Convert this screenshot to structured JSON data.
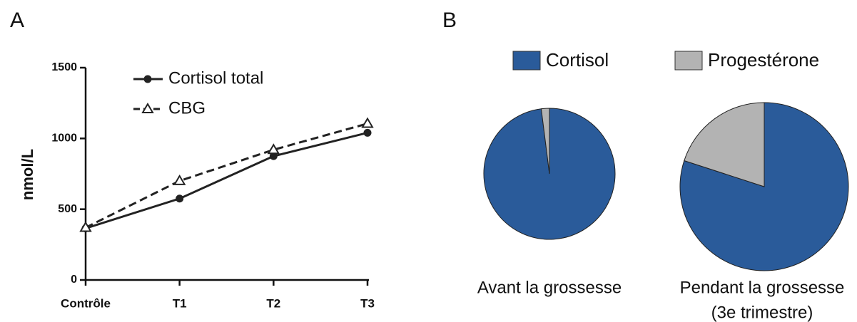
{
  "chart_data": [
    {
      "type": "line",
      "panel": "A",
      "y_label": "nmol/L",
      "categories": [
        "Contrôle",
        "T1",
        "T2",
        "T3"
      ],
      "series": [
        {
          "name": "Cortisol total",
          "color": "#222222",
          "marker": "circle",
          "dash": false,
          "values": [
            365,
            575,
            875,
            1040
          ]
        },
        {
          "name": "CBG",
          "color": "#222222",
          "marker": "triangle",
          "dash": true,
          "values": [
            370,
            700,
            920,
            1105
          ]
        }
      ],
      "ylim": [
        0,
        1500
      ],
      "yticks": [
        0,
        500,
        1000,
        1500
      ]
    },
    {
      "type": "pie",
      "panel": "B",
      "series": [
        {
          "name": "Cortisol",
          "color": "#2a5b9a"
        },
        {
          "name": "Progestérone",
          "color": "#b3b3b3"
        }
      ],
      "pies": [
        {
          "label": [
            "Avant la grossesse"
          ],
          "values": [
            98,
            2
          ]
        },
        {
          "label": [
            "Pendant la grossesse",
            "(3e trimestre)"
          ],
          "values": [
            80,
            20
          ]
        }
      ]
    }
  ]
}
